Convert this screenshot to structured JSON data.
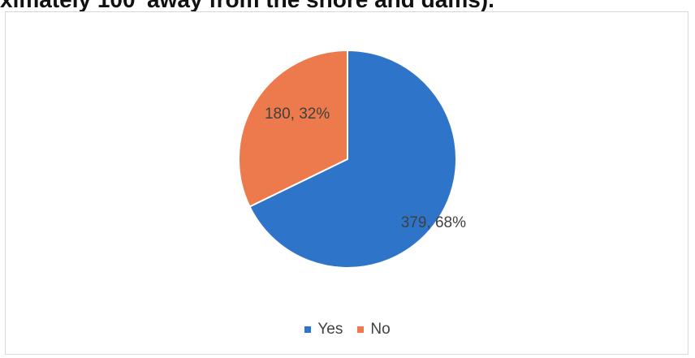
{
  "header_text": "ximately 100' away from the shore and dams).",
  "chart_data": {
    "type": "pie",
    "title": "",
    "series": [
      {
        "name": "Yes",
        "value": 379,
        "percent": "68%",
        "color": "#2e75c9"
      },
      {
        "name": "No",
        "value": 180,
        "percent": "32%",
        "color": "#ec7a4c"
      }
    ],
    "data_labels": [
      "379, 68%",
      "180, 32%"
    ],
    "legend": {
      "placement": "bottom",
      "entries": [
        "Yes",
        "No"
      ]
    }
  }
}
